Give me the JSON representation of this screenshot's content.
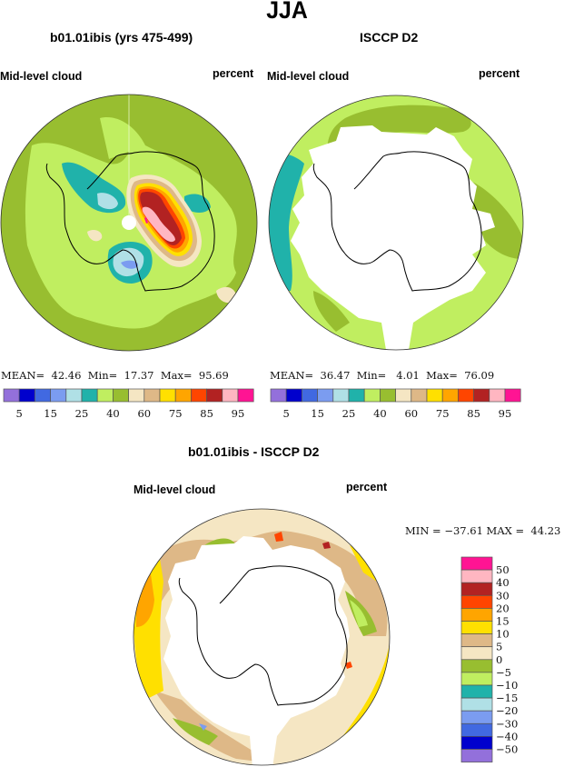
{
  "title": "JJA",
  "panels": [
    {
      "id": "model",
      "title": "b01.01ibis (yrs 475-499)",
      "variable_label": "Mid-level cloud",
      "units_label": "percent",
      "stats": {
        "mean_label": "MEAN=",
        "mean": "42.46",
        "min_label": "Min=",
        "min": "17.37",
        "max_label": "Max=",
        "max": "95.69"
      }
    },
    {
      "id": "obs",
      "title": "ISCCP D2",
      "variable_label": "Mid-level cloud",
      "units_label": "percent",
      "stats": {
        "mean_label": "MEAN=",
        "mean": "36.47",
        "min_label": "Min=",
        "min": "4.01",
        "max_label": "Max=",
        "max": "76.09"
      }
    },
    {
      "id": "diff",
      "title": "b01.01ibis - ISCCP D2",
      "variable_label": "Mid-level cloud",
      "units_label": "percent",
      "stats": {
        "min_label": "MIN =",
        "min": "−37.61",
        "max_label": "MAX =",
        "max": "44.23"
      }
    }
  ],
  "chart_data": [
    {
      "type": "heatmap",
      "projection": "south-polar-stereographic",
      "title": "b01.01ibis (yrs 475-499)",
      "variable": "Mid-level cloud",
      "units": "percent",
      "summary": {
        "mean": 42.46,
        "min": 17.37,
        "max": 95.69
      },
      "colorbar": {
        "orientation": "horizontal",
        "levels": [
          5,
          10,
          15,
          20,
          25,
          30,
          40,
          50,
          60,
          70,
          75,
          80,
          85,
          90,
          95
        ],
        "tick_labels": [
          "5",
          "15",
          "25",
          "40",
          "60",
          "75",
          "85",
          "95"
        ],
        "colors": [
          "#9370DB",
          "#0000CD",
          "#4169E1",
          "#7B9CF0",
          "#B0E0E6",
          "#20B2AA",
          "#C0EE60",
          "#98BE30",
          "#F5E6C3",
          "#DEB887",
          "#FFE000",
          "#FFA500",
          "#FF4500",
          "#B22222",
          "#FFB6C1",
          "#FF1493"
        ]
      },
      "features": [
        "large red/pink maximum over East Antarctica (>85%)",
        "light-blue/teal minima over Ross Sea and Weddell Sea sectors",
        "ocean mostly 40-60%"
      ]
    },
    {
      "type": "heatmap",
      "projection": "south-polar-stereographic",
      "title": "ISCCP D2",
      "variable": "Mid-level cloud",
      "units": "percent",
      "summary": {
        "mean": 36.47,
        "min": 4.01,
        "max": 76.09
      },
      "colorbar": {
        "orientation": "horizontal",
        "levels": [
          5,
          10,
          15,
          20,
          25,
          30,
          40,
          50,
          60,
          70,
          75,
          80,
          85,
          90,
          95
        ],
        "tick_labels": [
          "5",
          "15",
          "25",
          "40",
          "60",
          "75",
          "85",
          "95"
        ],
        "colors": [
          "#9370DB",
          "#0000CD",
          "#4169E1",
          "#7B9CF0",
          "#B0E0E6",
          "#20B2AA",
          "#C0EE60",
          "#98BE30",
          "#F5E6C3",
          "#DEB887",
          "#FFE000",
          "#FFA500",
          "#FF4500",
          "#B22222",
          "#FFB6C1",
          "#FF1493"
        ]
      },
      "features": [
        "missing data (white) over Antarctica and sea-ice zone",
        "ocean ring mostly 40-60%",
        "teal 30-40% band in South Atlantic sector"
      ]
    },
    {
      "type": "heatmap",
      "projection": "south-polar-stereographic",
      "title": "b01.01ibis - ISCCP D2",
      "variable": "Mid-level cloud",
      "units": "percent",
      "summary": {
        "min": -37.61,
        "max": 44.23
      },
      "colorbar": {
        "orientation": "vertical",
        "levels": [
          -50,
          -40,
          -30,
          -20,
          -15,
          -10,
          -5,
          0,
          5,
          10,
          15,
          20,
          30,
          40,
          50
        ],
        "tick_labels": [
          "50",
          "40",
          "30",
          "20",
          "15",
          "10",
          "5",
          "0",
          "−5",
          "−10",
          "−15",
          "−20",
          "−30",
          "−40",
          "−50"
        ],
        "colors": [
          "#FF1493",
          "#FFB6C1",
          "#B22222",
          "#FF4500",
          "#FFA500",
          "#FFE000",
          "#DEB887",
          "#F5E6C3",
          "#98BE30",
          "#C0EE60",
          "#20B2AA",
          "#B0E0E6",
          "#7B9CF0",
          "#4169E1",
          "#0000CD",
          "#9370DB"
        ]
      },
      "features": [
        "mostly positive differences 0-15% over ocean",
        "negative patches -5 to -20% near ice edge",
        "missing data (white) over Antarctica and sea-ice zone"
      ]
    }
  ]
}
